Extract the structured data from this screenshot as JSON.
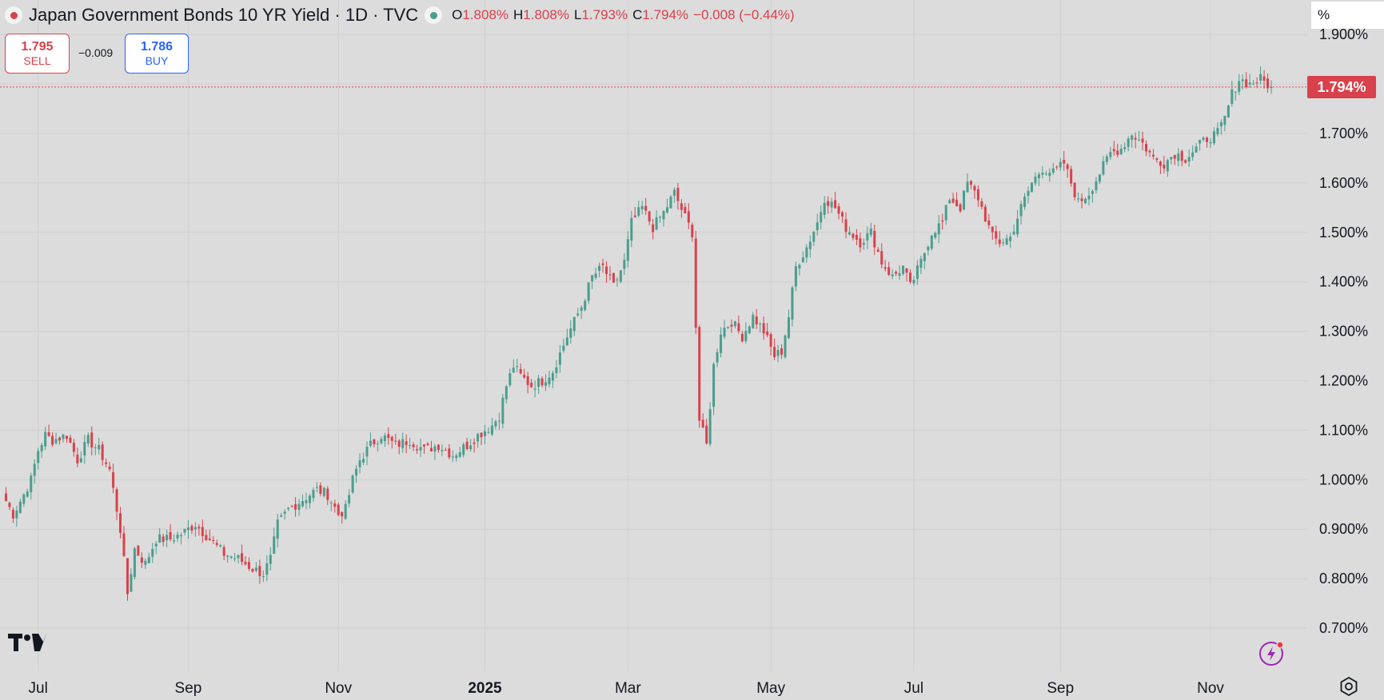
{
  "header": {
    "title": "Japan Government Bonds 10 YR Yield · 1D · TVC",
    "ohlc": [
      {
        "key": "O",
        "value": "1.808%"
      },
      {
        "key": "H",
        "value": "1.808%"
      },
      {
        "key": "L",
        "value": "1.793%"
      },
      {
        "key": "C",
        "value": "1.794%"
      }
    ],
    "change": "−0.008 (−0.44%)"
  },
  "trade": {
    "sell_price": "1.795",
    "sell_label": "SELL",
    "spread": "−0.009",
    "buy_price": "1.786",
    "buy_label": "BUY"
  },
  "axis_unit": "%",
  "last_price_label": "1.794%",
  "colors": {
    "up": "#4a9e8d",
    "down": "#d9414c",
    "background": "#dcdcdc",
    "grid": "#cfcfcf",
    "buy": "#2962ff"
  },
  "icons": [
    "status-dot-icon",
    "market-open-icon",
    "tradingview-logo-icon",
    "lightning-icon",
    "settings-icon"
  ],
  "chart_data": {
    "type": "candlestick-line",
    "title": "Japan Government Bonds 10 YR Yield",
    "interval": "1D",
    "ylim": [
      0.63,
      1.935
    ],
    "yticks": [
      "0.700%",
      "0.800%",
      "0.900%",
      "1.000%",
      "1.100%",
      "1.200%",
      "1.300%",
      "1.400%",
      "1.500%",
      "1.600%",
      "1.700%",
      "1.800%",
      "1.900%"
    ],
    "xticks": [
      {
        "label": "Jul",
        "index": 10
      },
      {
        "label": "Sep",
        "index": 52
      },
      {
        "label": "Nov",
        "index": 94
      },
      {
        "label": "2025",
        "index": 135
      },
      {
        "label": "Mar",
        "index": 175
      },
      {
        "label": "May",
        "index": 215
      },
      {
        "label": "Jul",
        "index": 255
      },
      {
        "label": "Sep",
        "index": 296
      },
      {
        "label": "Nov",
        "index": 338
      }
    ],
    "bar_count": 356,
    "last_close": 1.794,
    "grid": true,
    "closes_anchors": [
      [
        0,
        0.97
      ],
      [
        3,
        0.93
      ],
      [
        6,
        0.97
      ],
      [
        8,
        1.0
      ],
      [
        10,
        1.06
      ],
      [
        12,
        1.09
      ],
      [
        14,
        1.08
      ],
      [
        18,
        1.09
      ],
      [
        21,
        1.04
      ],
      [
        24,
        1.08
      ],
      [
        27,
        1.06
      ],
      [
        30,
        1.02
      ],
      [
        33,
        0.9
      ],
      [
        35,
        0.77
      ],
      [
        37,
        0.86
      ],
      [
        40,
        0.83
      ],
      [
        43,
        0.88
      ],
      [
        47,
        0.88
      ],
      [
        50,
        0.89
      ],
      [
        54,
        0.91
      ],
      [
        58,
        0.88
      ],
      [
        62,
        0.85
      ],
      [
        66,
        0.84
      ],
      [
        70,
        0.82
      ],
      [
        73,
        0.81
      ],
      [
        75,
        0.84
      ],
      [
        77,
        0.91
      ],
      [
        80,
        0.94
      ],
      [
        84,
        0.96
      ],
      [
        88,
        0.98
      ],
      [
        91,
        0.97
      ],
      [
        94,
        0.93
      ],
      [
        96,
        0.94
      ],
      [
        98,
        1.0
      ],
      [
        100,
        1.04
      ],
      [
        103,
        1.07
      ],
      [
        106,
        1.09
      ],
      [
        110,
        1.07
      ],
      [
        114,
        1.08
      ],
      [
        118,
        1.06
      ],
      [
        122,
        1.07
      ],
      [
        126,
        1.05
      ],
      [
        130,
        1.07
      ],
      [
        133,
        1.09
      ],
      [
        137,
        1.11
      ],
      [
        139,
        1.13
      ],
      [
        141,
        1.19
      ],
      [
        143,
        1.23
      ],
      [
        145,
        1.21
      ],
      [
        148,
        1.19
      ],
      [
        151,
        1.2
      ],
      [
        154,
        1.22
      ],
      [
        158,
        1.29
      ],
      [
        162,
        1.35
      ],
      [
        165,
        1.41
      ],
      [
        168,
        1.43
      ],
      [
        171,
        1.39
      ],
      [
        174,
        1.44
      ],
      [
        176,
        1.52
      ],
      [
        179,
        1.55
      ],
      [
        182,
        1.51
      ],
      [
        185,
        1.54
      ],
      [
        188,
        1.58
      ],
      [
        191,
        1.53
      ],
      [
        193,
        1.5
      ],
      [
        195,
        1.12
      ],
      [
        197,
        1.07
      ],
      [
        199,
        1.23
      ],
      [
        201,
        1.3
      ],
      [
        204,
        1.32
      ],
      [
        207,
        1.29
      ],
      [
        210,
        1.33
      ],
      [
        213,
        1.3
      ],
      [
        216,
        1.25
      ],
      [
        218,
        1.26
      ],
      [
        220,
        1.33
      ],
      [
        222,
        1.43
      ],
      [
        225,
        1.47
      ],
      [
        228,
        1.52
      ],
      [
        230,
        1.57
      ],
      [
        233,
        1.55
      ],
      [
        236,
        1.51
      ],
      [
        240,
        1.48
      ],
      [
        243,
        1.5
      ],
      [
        246,
        1.44
      ],
      [
        249,
        1.41
      ],
      [
        252,
        1.43
      ],
      [
        254,
        1.39
      ],
      [
        257,
        1.44
      ],
      [
        260,
        1.5
      ],
      [
        263,
        1.52
      ],
      [
        265,
        1.57
      ],
      [
        268,
        1.55
      ],
      [
        270,
        1.6
      ],
      [
        273,
        1.57
      ],
      [
        275,
        1.53
      ],
      [
        277,
        1.49
      ],
      [
        279,
        1.48
      ],
      [
        282,
        1.49
      ],
      [
        285,
        1.55
      ],
      [
        288,
        1.6
      ],
      [
        291,
        1.63
      ],
      [
        294,
        1.62
      ],
      [
        297,
        1.64
      ],
      [
        299,
        1.6
      ],
      [
        301,
        1.56
      ],
      [
        304,
        1.58
      ],
      [
        307,
        1.62
      ],
      [
        310,
        1.66
      ],
      [
        313,
        1.67
      ],
      [
        316,
        1.7
      ],
      [
        319,
        1.68
      ],
      [
        322,
        1.65
      ],
      [
        325,
        1.64
      ],
      [
        328,
        1.66
      ],
      [
        331,
        1.65
      ],
      [
        334,
        1.67
      ],
      [
        337,
        1.69
      ],
      [
        340,
        1.7
      ],
      [
        342,
        1.73
      ],
      [
        344,
        1.78
      ],
      [
        346,
        1.81
      ],
      [
        349,
        1.8
      ],
      [
        352,
        1.81
      ],
      [
        355,
        1.794
      ]
    ]
  }
}
